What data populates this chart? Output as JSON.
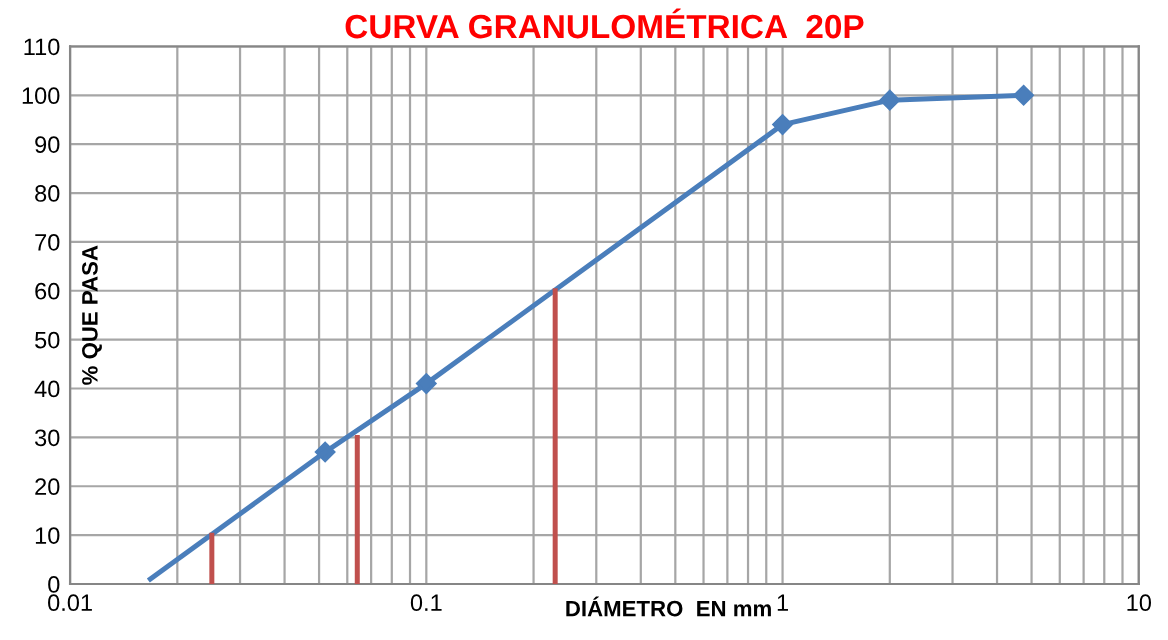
{
  "chart_data": {
    "type": "line",
    "title": "CURVA GRANULOMÉTRICA  20P",
    "xlabel": "DIÁMETRO  EN mm",
    "ylabel": "% QUE PASA",
    "log": "x",
    "series": [
      {
        "color": "#4a7ebb",
        "x": [
          0.052,
          0.1,
          1,
          2,
          4.75
        ],
        "values": [
          27,
          41,
          94,
          99,
          100
        ],
        "marker": "diamond"
      },
      {
        "color": "#4a7ebb",
        "x": [
          0.0168,
          0.052
        ],
        "values": [
          1,
          27
        ],
        "marker": "none"
      },
      {
        "color": "#c0504d",
        "x": [
          0.025,
          0.025
        ],
        "values": [
          0,
          10
        ],
        "marker": "none"
      },
      {
        "color": "#c0504d",
        "x": [
          0.064,
          0.064
        ],
        "values": [
          0,
          30
        ],
        "marker": "none"
      },
      {
        "color": "#c0504d",
        "x": [
          0.23,
          0.23
        ],
        "values": [
          0,
          60
        ],
        "marker": "none"
      }
    ],
    "xlim": [
      0.01,
      10
    ],
    "xticks": [
      0.01,
      0.1,
      1,
      10
    ],
    "ylim": [
      0,
      110
    ],
    "yticks": [
      0,
      10,
      20,
      30,
      40,
      50,
      60,
      70,
      80,
      90,
      100,
      110
    ],
    "grid": true,
    "legend": false
  }
}
